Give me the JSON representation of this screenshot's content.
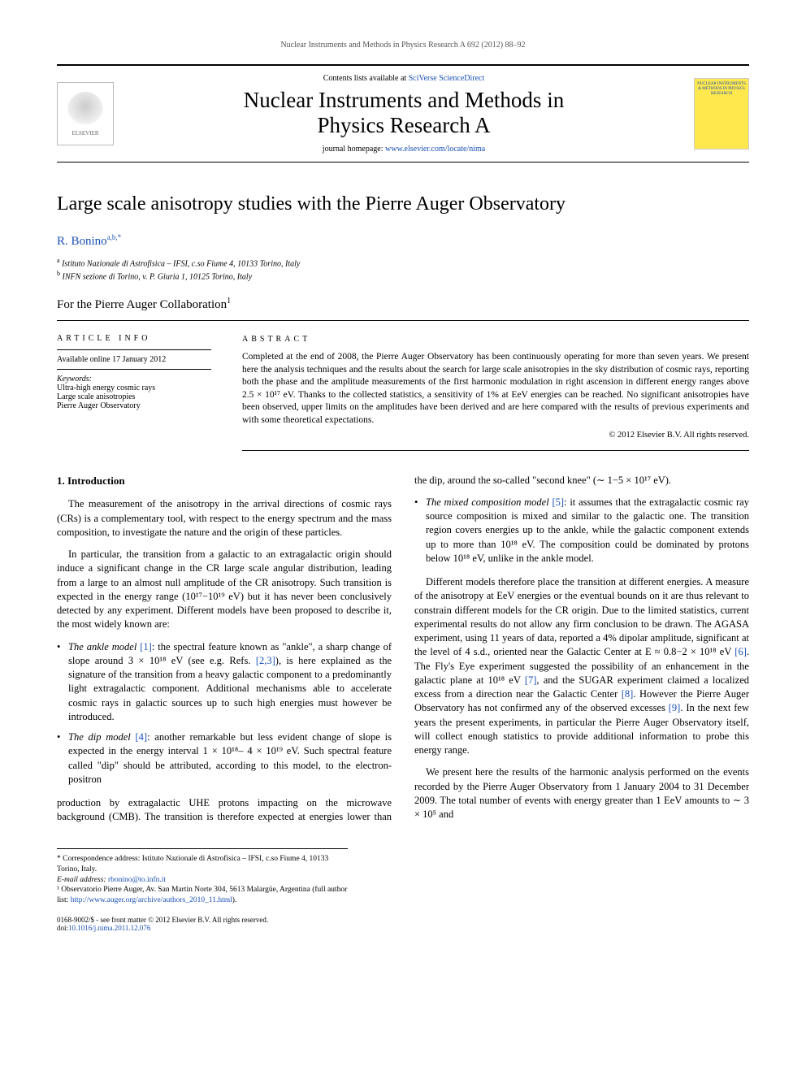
{
  "running_head": "Nuclear Instruments and Methods in Physics Research A 692 (2012) 88–92",
  "masthead": {
    "contents_prefix": "Contents lists available at ",
    "contents_link": "SciVerse ScienceDirect",
    "journal_title_l1": "Nuclear Instruments and Methods in",
    "journal_title_l2": "Physics Research A",
    "homepage_prefix": "journal homepage: ",
    "homepage_link": "www.elsevier.com/locate/nima",
    "elsevier_label": "ELSEVIER",
    "cover_text": "NUCLEAR INSTRUMENTS & METHODS IN PHYSICS RESEARCH"
  },
  "article": {
    "title": "Large scale anisotropy studies with the Pierre Auger Observatory",
    "author": "R. Bonino",
    "author_sup": "a,b,*",
    "affiliations": [
      {
        "sup": "a",
        "text": "Istituto Nazionale di Astrofisica – IFSI, c.so Fiume 4, 10133 Torino, Italy"
      },
      {
        "sup": "b",
        "text": "INFN sezione di Torino, v. P. Giuria 1, 10125 Torino, Italy"
      }
    ],
    "collaboration": "For the Pierre Auger Collaboration",
    "collab_sup": "1"
  },
  "info": {
    "head": "ARTICLE INFO",
    "available": "Available online 17 January 2012",
    "kw_head": "Keywords:",
    "keywords": [
      "Ultra-high energy cosmic rays",
      "Large scale anisotropies",
      "Pierre Auger Observatory"
    ]
  },
  "abstract": {
    "head": "ABSTRACT",
    "text": "Completed at the end of 2008, the Pierre Auger Observatory has been continuously operating for more than seven years. We present here the analysis techniques and the results about the search for large scale anisotropies in the sky distribution of cosmic rays, reporting both the phase and the amplitude measurements of the first harmonic modulation in right ascension in different energy ranges above 2.5 × 10¹⁷ eV. Thanks to the collected statistics, a sensitivity of 1% at EeV energies can be reached. No significant anisotropies have been observed, upper limits on the amplitudes have been derived and are here compared with the results of previous experiments and with some theoretical expectations.",
    "copyright": "© 2012 Elsevier B.V. All rights reserved."
  },
  "body": {
    "sec1_head": "1. Introduction",
    "p1": "The measurement of the anisotropy in the arrival directions of cosmic rays (CRs) is a complementary tool, with respect to the energy spectrum and the mass composition, to investigate the nature and the origin of these particles.",
    "p2": "In particular, the transition from a galactic to an extragalactic origin should induce a significant change in the CR large scale angular distribution, leading from a large to an almost null amplitude of the CR anisotropy. Such transition is expected in the energy range (10¹⁷−10¹⁹ eV) but it has never been conclusively detected by any experiment. Different models have been proposed to describe it, the most widely known are:",
    "li1_lead": "The ankle model ",
    "li1_ref": "[1]",
    "li1_rest": ": the spectral feature known as \"ankle\", a sharp change of slope around 3 × 10¹⁸ eV (see e.g. Refs. ",
    "li1_ref2": "[2,3]",
    "li1_rest2": "), is here explained as the signature of the transition from a heavy galactic component to a predominantly light extragalactic component. Additional mechanisms able to accelerate cosmic rays in galactic sources up to such high energies must however be introduced.",
    "li2_lead": "The dip model ",
    "li2_ref": "[4]",
    "li2_rest": ": another remarkable but less evident change of slope is expected in the energy interval 1 × 10¹⁸– 4 × 10¹⁹ eV. Such spectral feature called \"dip\" should be attributed, according to this model, to the electron-positron",
    "p3": "production by extragalactic UHE protons impacting on the microwave background (CMB). The transition is therefore expected at energies lower than the dip, around the so-called \"second knee\" (∼ 1−5 × 10¹⁷ eV).",
    "li3_lead": "The mixed composition model ",
    "li3_ref": "[5]",
    "li3_rest": ": it assumes that the extragalactic cosmic ray source composition is mixed and similar to the galactic one. The transition region covers energies up to the ankle, while the galactic component extends up to more than 10¹⁸ eV. The composition could be dominated by protons below 10¹⁸ eV, unlike in the ankle model.",
    "p4a": "Different models therefore place the transition at different energies. A measure of the anisotropy at EeV energies or the eventual bounds on it are thus relevant to constrain different models for the CR origin. Due to the limited statistics, current experimental results do not allow any firm conclusion to be drawn. The AGASA experiment, using 11 years of data, reported a 4% dipolar amplitude, significant at the level of 4 s.d., oriented near the Galactic Center at E ≈ 0.8−2 × 10¹⁸ eV ",
    "p4_ref6": "[6]",
    "p4b": ". The Fly's Eye experiment suggested the possibility of an enhancement in the galactic plane at 10¹⁸ eV ",
    "p4_ref7": "[7]",
    "p4c": ", and the SUGAR experiment claimed a localized excess from a direction near the Galactic Center ",
    "p4_ref8": "[8]",
    "p4d": ". However the Pierre Auger Observatory has not confirmed any of the observed excesses ",
    "p4_ref9": "[9]",
    "p4e": ". In the next few years the present experiments, in particular the Pierre Auger Observatory itself, will collect enough statistics to provide additional information to probe this energy range.",
    "p5": "We present here the results of the harmonic analysis performed on the events recorded by the Pierre Auger Observatory from 1 January 2004 to 31 December 2009. The total number of events with energy greater than 1 EeV amounts to ∼ 3 × 10⁵ and"
  },
  "footnotes": {
    "corr": "* Correspondence address: Istituto Nazionale di Astrofisica – IFSI, c.so Fiume 4, 10133 Torino, Italy.",
    "email_label": "E-mail address: ",
    "email": "rbonino@to.infn.it",
    "note1_a": "¹ Observatorio Pierre Auger, Av. San Martin Norte 304, 5613 Malargüe, Argentina (full author list: ",
    "note1_link": "http://www.auger.org/archive/authors_2010_11.html",
    "note1_b": ")."
  },
  "footer": {
    "issn": "0168-9002/$ - see front matter © 2012 Elsevier B.V. All rights reserved.",
    "doi_label": "doi:",
    "doi": "10.1016/j.nima.2011.12.076"
  },
  "colors": {
    "link": "#1a4fb3",
    "text": "#000000",
    "cover_bg": "#ffe84d"
  }
}
